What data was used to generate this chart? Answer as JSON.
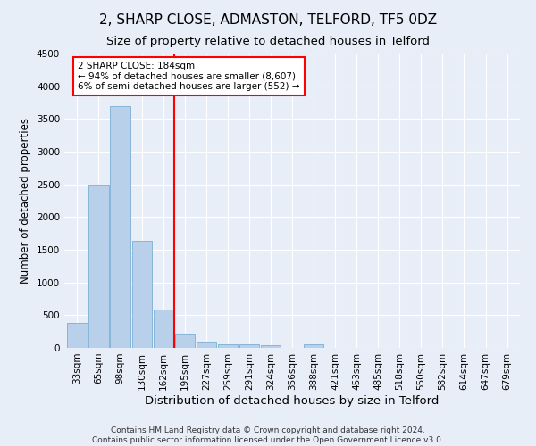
{
  "title": "2, SHARP CLOSE, ADMASTON, TELFORD, TF5 0DZ",
  "subtitle": "Size of property relative to detached houses in Telford",
  "xlabel": "Distribution of detached houses by size in Telford",
  "ylabel": "Number of detached properties",
  "footer_line1": "Contains HM Land Registry data © Crown copyright and database right 2024.",
  "footer_line2": "Contains public sector information licensed under the Open Government Licence v3.0.",
  "categories": [
    "33sqm",
    "65sqm",
    "98sqm",
    "130sqm",
    "162sqm",
    "195sqm",
    "227sqm",
    "259sqm",
    "291sqm",
    "324sqm",
    "356sqm",
    "388sqm",
    "421sqm",
    "453sqm",
    "485sqm",
    "518sqm",
    "550sqm",
    "582sqm",
    "614sqm",
    "647sqm",
    "679sqm"
  ],
  "values": [
    380,
    2500,
    3700,
    1640,
    590,
    220,
    100,
    55,
    50,
    40,
    0,
    50,
    0,
    0,
    0,
    0,
    0,
    0,
    0,
    0,
    0
  ],
  "bar_color": "#b8d0ea",
  "bar_edge_color": "#7aafd4",
  "vline_color": "red",
  "vline_x_index": 4.5,
  "annotation_text": "2 SHARP CLOSE: 184sqm\n← 94% of detached houses are smaller (8,607)\n6% of semi-detached houses are larger (552) →",
  "annotation_box_color": "white",
  "annotation_box_edge_color": "red",
  "ylim": [
    0,
    4500
  ],
  "yticks": [
    0,
    500,
    1000,
    1500,
    2000,
    2500,
    3000,
    3500,
    4000,
    4500
  ],
  "background_color": "#e8eef8",
  "grid_color": "white",
  "title_fontsize": 11,
  "subtitle_fontsize": 9.5,
  "ylabel_fontsize": 8.5,
  "xlabel_fontsize": 9.5,
  "tick_fontsize": 7.5,
  "annotation_fontsize": 7.5,
  "footer_fontsize": 6.5
}
